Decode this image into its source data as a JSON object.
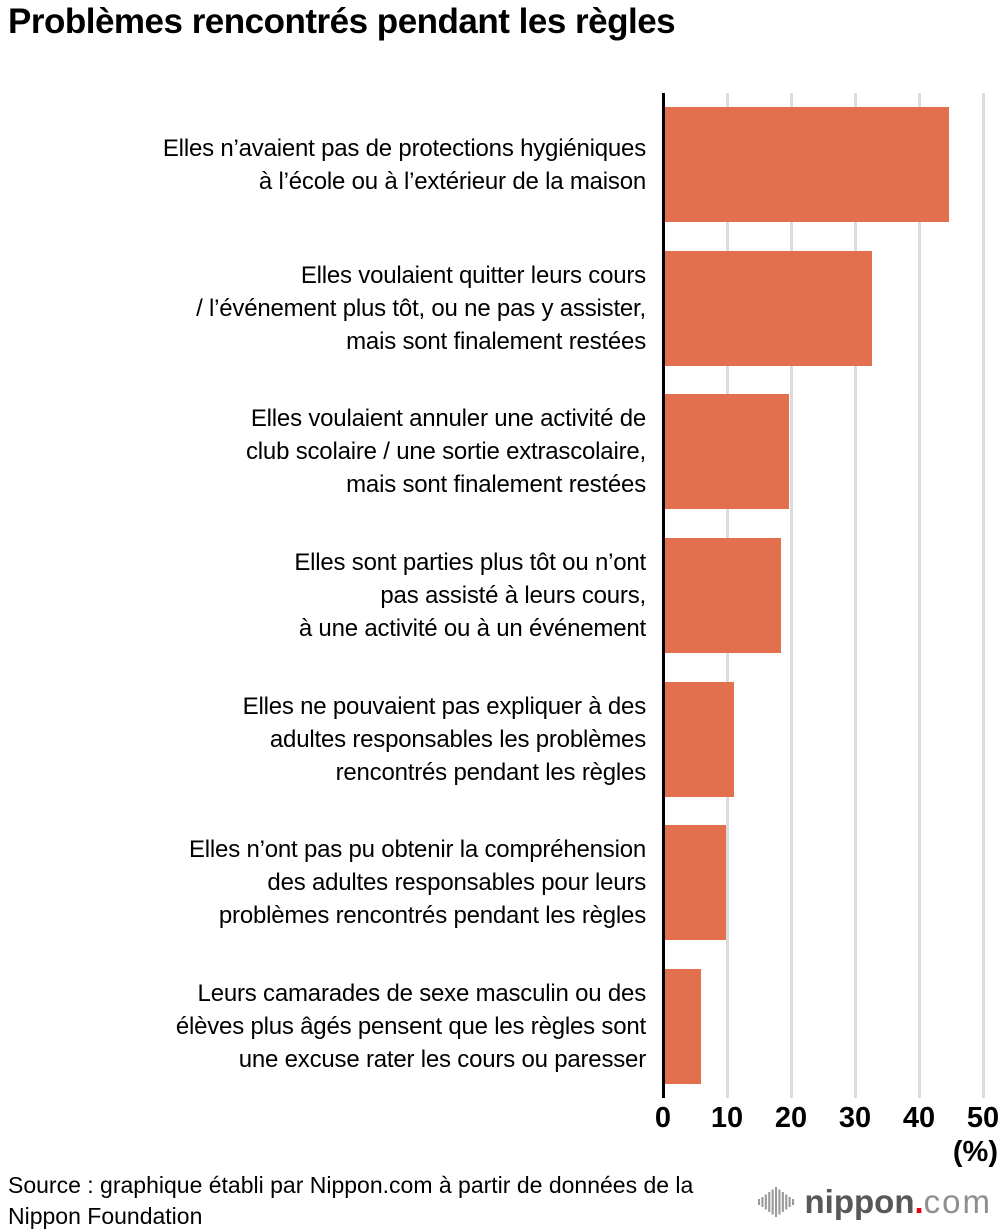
{
  "header": {
    "title": "Problèmes rencontrés pendant les règles"
  },
  "chart_data": {
    "type": "bar",
    "orientation": "horizontal",
    "title": "Problèmes rencontrés pendant les règles",
    "categories": [
      "Elles n’avaient pas de protections hygiéniques à l’école ou à l’extérieur de la maison",
      "Elles voulaient quitter leurs cours / l’événement plus tôt, ou ne pas y assister, mais sont finalement restées",
      "Elles voulaient annuler une activité de club scolaire / une sortie extrascolaire, mais sont finalement restées",
      "Elles sont parties plus tôt ou n’ont pas assisté à leurs cours, à une activité ou à un événement",
      "Elles ne pouvaient pas expliquer à des adultes responsables les problèmes rencontrés pendant les règles",
      "Elles n’ont pas pu obtenir la compréhension des adultes responsables pour leurs problèmes rencontrés pendant les règles",
      "Leurs camarades de sexe masculin ou des élèves plus âgés pensent que les règles sont une excuse rater les cours ou paresser"
    ],
    "category_lines": [
      [
        "Elles n’avaient pas de protections hygiéniques",
        "à l’école ou à l’extérieur de la maison"
      ],
      [
        "Elles voulaient quitter leurs cours",
        "/ l’événement plus tôt, ou ne pas y assister,",
        "mais sont finalement restées"
      ],
      [
        "Elles voulaient annuler une activité de",
        "club scolaire / une sortie extrascolaire,",
        "mais sont finalement restées"
      ],
      [
        "Elles sont parties plus tôt ou n’ont",
        "pas assisté à leurs cours,",
        "à une activité ou à un événement"
      ],
      [
        "Elles ne pouvaient pas expliquer à des",
        "adultes responsables les problèmes",
        "rencontrés pendant les règles"
      ],
      [
        "Elles n’ont pas pu obtenir la compréhension",
        "des adultes responsables pour leurs",
        "problèmes rencontrés pendant les règles"
      ],
      [
        "Leurs camarades de sexe masculin ou des",
        "élèves plus âgés pensent que les règles sont",
        "une excuse rater les cours ou paresser"
      ]
    ],
    "values": [
      44.3,
      32.3,
      19.3,
      18.1,
      10.8,
      9.5,
      5.7
    ],
    "xlim": [
      0,
      50
    ],
    "x_ticks": [
      "0",
      "10",
      "20",
      "30",
      "40",
      "50"
    ],
    "xlabel": "(%)",
    "ylabel": "",
    "grid": true,
    "legend": false,
    "bar_color": "#e2704f",
    "axis_color": "#000000",
    "grid_color": "#dcdcdc"
  },
  "footer": {
    "source": "Source : graphique établi par Nippon.com à partir de données de la Nippon Foundation",
    "source_lines": [
      "Source : graphique établi par Nippon.com à partir de données de la",
      "Nippon Foundation"
    ],
    "logo": {
      "name": "nippon.com",
      "text_main": "nippon",
      "text_dot": ".",
      "text_suffix": "com",
      "colors": {
        "nippon": "#595757",
        "dot": "#e60012",
        "suffix": "#8f8f8f",
        "icon": "#9a9a9a"
      }
    }
  }
}
